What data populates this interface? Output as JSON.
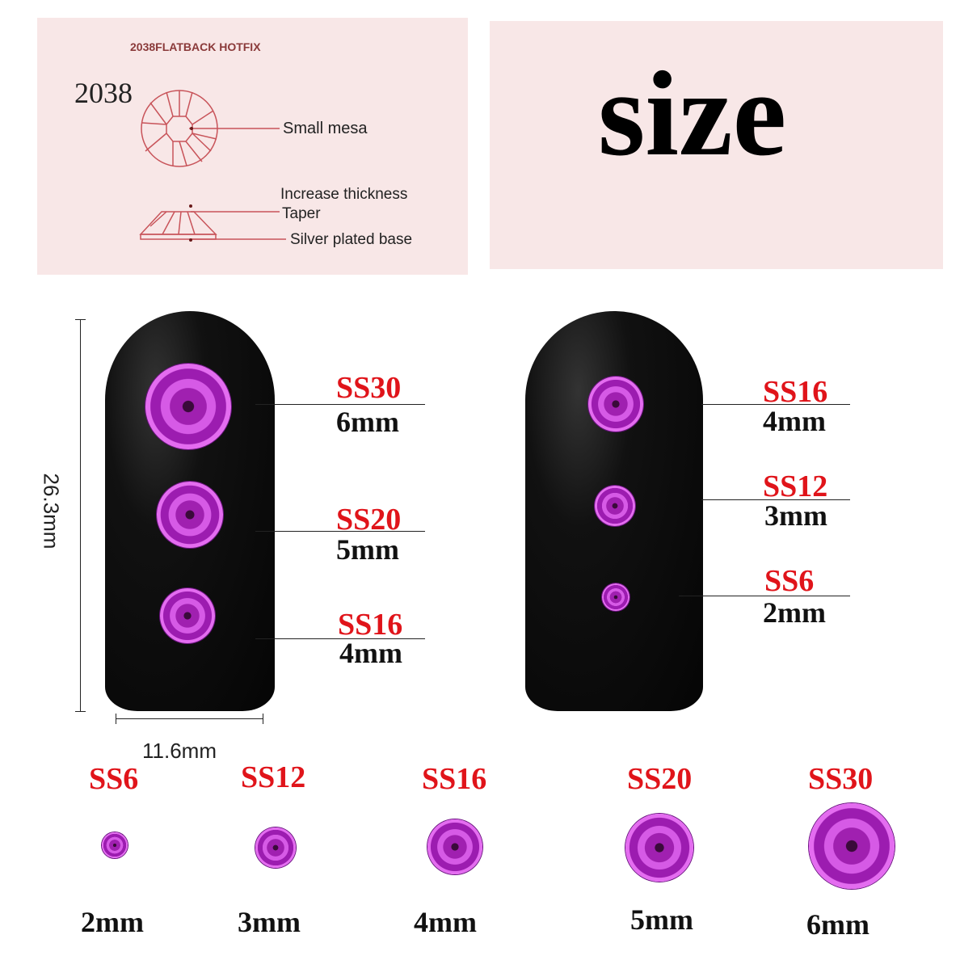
{
  "diagram_panel": {
    "heading": "2038FLATBACK HOTFIX",
    "model": "2038",
    "labels": [
      "Small mesa",
      "Increase thickness",
      "Taper",
      "Silver plated base"
    ]
  },
  "size_panel": {
    "title": "size"
  },
  "nail_dimensions": {
    "height": "26.3mm",
    "width": "11.6mm"
  },
  "left_nail": [
    {
      "code": "SS30",
      "size": "6mm"
    },
    {
      "code": "SS20",
      "size": "5mm"
    },
    {
      "code": "SS16",
      "size": "4mm"
    }
  ],
  "right_nail": [
    {
      "code": "SS16",
      "size": "4mm"
    },
    {
      "code": "SS12",
      "size": "3mm"
    },
    {
      "code": "SS6",
      "size": "2mm"
    }
  ],
  "bottom_row": [
    {
      "code": "SS6",
      "size": "2mm"
    },
    {
      "code": "SS12",
      "size": "3mm"
    },
    {
      "code": "SS16",
      "size": "4mm"
    },
    {
      "code": "SS20",
      "size": "5mm"
    },
    {
      "code": "SS30",
      "size": "6mm"
    }
  ],
  "colors": {
    "label_red": "#e0141a",
    "panel_pink": "#f8e7e7",
    "diagram_line": "#c8545a",
    "gem_purple": "#b030c0"
  }
}
